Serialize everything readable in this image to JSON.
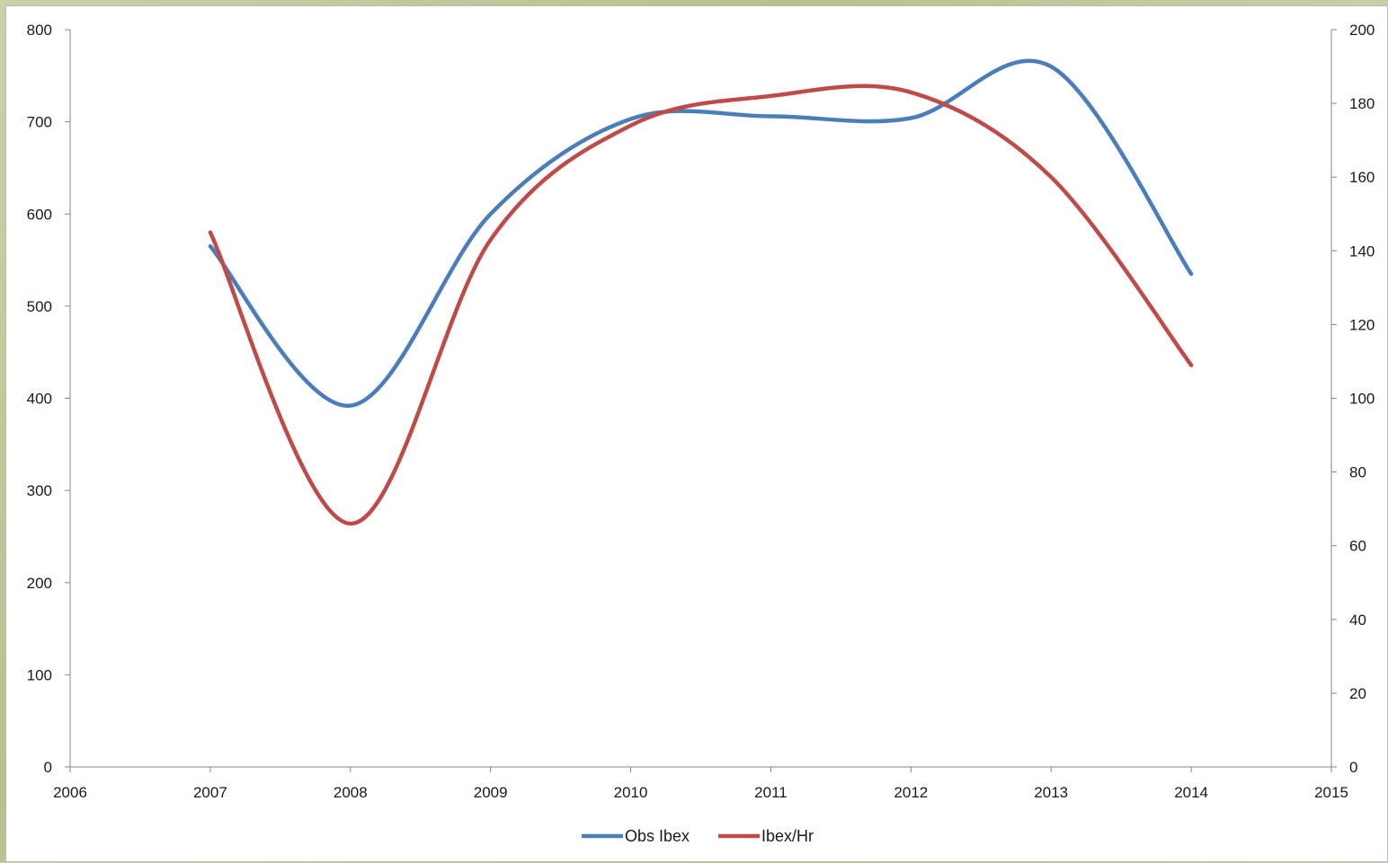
{
  "colors": {
    "obs_ibex": "#4a7ebb",
    "ibex_hr": "#be4b48",
    "axis": "#868686"
  },
  "chart_data": {
    "type": "line",
    "smooth": true,
    "title": "",
    "xlabel": "",
    "ylabel": "",
    "y2label": "",
    "xlim": [
      2006,
      2015
    ],
    "ylim": [
      0,
      800
    ],
    "y2lim": [
      0,
      200
    ],
    "x_ticks": [
      2006,
      2007,
      2008,
      2009,
      2010,
      2011,
      2012,
      2013,
      2014,
      2015
    ],
    "y_ticks": [
      0,
      100,
      200,
      300,
      400,
      500,
      600,
      700,
      800
    ],
    "y2_ticks": [
      0,
      20,
      40,
      60,
      80,
      100,
      120,
      140,
      160,
      180,
      200
    ],
    "grid": false,
    "legend_position": "bottom",
    "series": [
      {
        "name": "Obs Ibex",
        "axis": "left",
        "color": "#4a7ebb",
        "x": [
          2007,
          2008,
          2009,
          2010,
          2011,
          2012,
          2013,
          2014
        ],
        "y": [
          565,
          392,
          600,
          703,
          706,
          704,
          760,
          535
        ]
      },
      {
        "name": "Ibex/Hr",
        "axis": "right",
        "color": "#be4b48",
        "x": [
          2007,
          2008,
          2009,
          2010,
          2011,
          2012,
          2013,
          2014
        ],
        "y": [
          145,
          66,
          143,
          174,
          182,
          183,
          160,
          109
        ]
      }
    ]
  }
}
